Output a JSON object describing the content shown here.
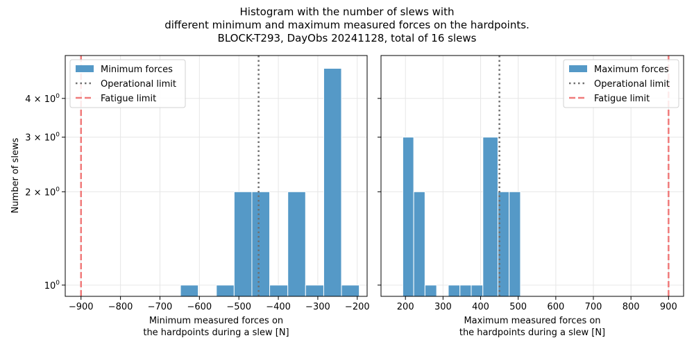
{
  "chart_data": {
    "title_lines": [
      "Histogram with the number of slews with",
      "different minimum and maximum measured forces on the hardpoints.",
      "BLOCK-T293, DayObs 20241128, total of 16 slews"
    ],
    "ylabel": "Number of slews",
    "y_scale": "log",
    "ylim": [
      0.92,
      5.5
    ],
    "y_ticks": [
      {
        "value": 1,
        "base": "10",
        "exp": "0"
      },
      {
        "value": 2,
        "pre": "2 × ",
        "base": "10",
        "exp": "0"
      },
      {
        "value": 3,
        "pre": "3 × ",
        "base": "10",
        "exp": "0"
      },
      {
        "value": 4,
        "pre": "4 × ",
        "base": "10",
        "exp": "0"
      }
    ],
    "colors": {
      "bar": "#5599c7",
      "operational": "#707070",
      "fatigue": "#f07a7a"
    },
    "grid": true,
    "panels": [
      {
        "type": "bar",
        "xlabel_lines": [
          "Minimum measured forces on",
          "the hardpoints during a slew [N]"
        ],
        "xlim": [
          -940,
          -175
        ],
        "x_ticks": [
          -900,
          -800,
          -700,
          -600,
          -500,
          -400,
          -300,
          -200
        ],
        "x_tick_labels": [
          "−900",
          "−800",
          "−700",
          "−600",
          "−500",
          "−400",
          "−300",
          "−200"
        ],
        "bins": [
          {
            "x0": -648,
            "x1": -603,
            "count": 1
          },
          {
            "x0": -557,
            "x1": -512,
            "count": 1
          },
          {
            "x0": -512,
            "x1": -467,
            "count": 2
          },
          {
            "x0": -467,
            "x1": -422,
            "count": 2
          },
          {
            "x0": -422,
            "x1": -376,
            "count": 1
          },
          {
            "x0": -376,
            "x1": -331,
            "count": 2
          },
          {
            "x0": -331,
            "x1": -285,
            "count": 1
          },
          {
            "x0": -285,
            "x1": -240,
            "count": 5
          },
          {
            "x0": -240,
            "x1": -195,
            "count": 1
          }
        ],
        "operational_limit": -450,
        "fatigue_limit": -900,
        "legend_position": "upper-left",
        "legend": {
          "bars": "Minimum forces",
          "operational": "Operational limit",
          "fatigue": "Fatigue limit"
        }
      },
      {
        "type": "bar",
        "xlabel_lines": [
          "Maximum measured forces on",
          "the hardpoints during a slew [N]"
        ],
        "xlim": [
          135,
          940
        ],
        "x_ticks": [
          200,
          300,
          400,
          500,
          600,
          700,
          800,
          900
        ],
        "x_tick_labels": [
          "200",
          "300",
          "400",
          "500",
          "600",
          "700",
          "800",
          "900"
        ],
        "bins": [
          {
            "x0": 193,
            "x1": 222,
            "count": 3
          },
          {
            "x0": 222,
            "x1": 252,
            "count": 2
          },
          {
            "x0": 252,
            "x1": 283,
            "count": 1
          },
          {
            "x0": 314,
            "x1": 345,
            "count": 1
          },
          {
            "x0": 345,
            "x1": 375,
            "count": 1
          },
          {
            "x0": 375,
            "x1": 406,
            "count": 1
          },
          {
            "x0": 406,
            "x1": 446,
            "count": 3
          },
          {
            "x0": 446,
            "x1": 476,
            "count": 2
          },
          {
            "x0": 476,
            "x1": 506,
            "count": 2
          }
        ],
        "operational_limit": 450,
        "fatigue_limit": 900,
        "legend_position": "upper-right",
        "legend": {
          "bars": "Maximum forces",
          "operational": "Operational limit",
          "fatigue": "Fatigue limit"
        }
      }
    ]
  }
}
